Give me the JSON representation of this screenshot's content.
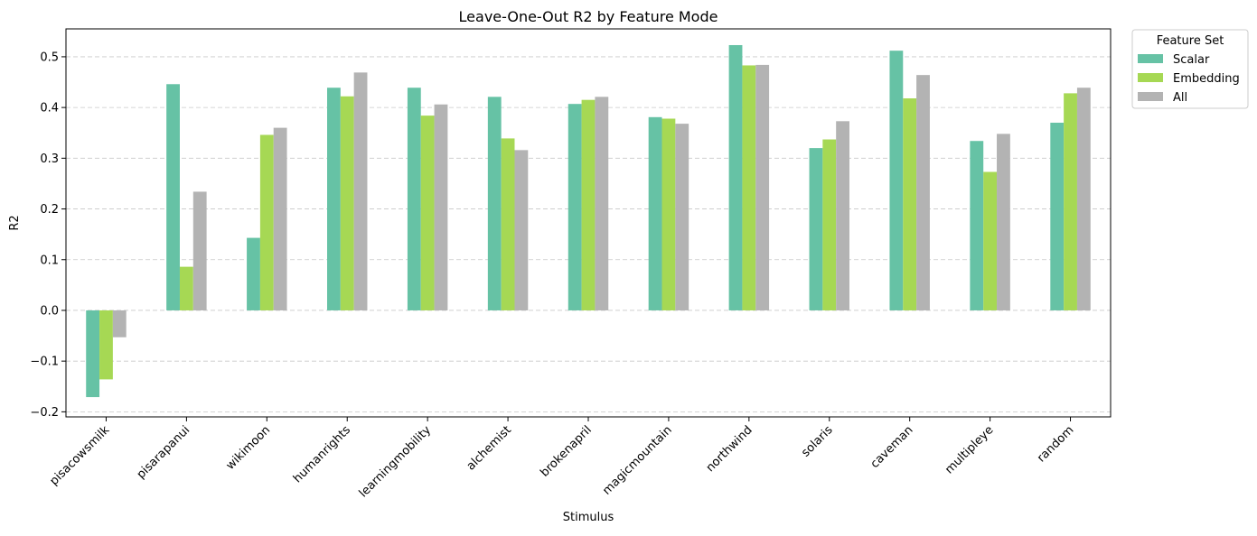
{
  "chart_data": {
    "type": "bar",
    "title": "Leave-One-Out R2 by Feature Mode",
    "xlabel": "Stimulus",
    "ylabel": "R2",
    "ylim": [
      -0.21,
      0.555
    ],
    "yticks": [
      -0.2,
      -0.1,
      0.0,
      0.1,
      0.2,
      0.3,
      0.4,
      0.5
    ],
    "ytick_labels": [
      "−0.2",
      "−0.1",
      "0.0",
      "0.1",
      "0.2",
      "0.3",
      "0.4",
      "0.5"
    ],
    "grid": "y, dashed",
    "legend": {
      "title": "Feature Set",
      "placement": "outside top-right"
    },
    "categories": [
      "pisacowsmilk",
      "pisarapanui",
      "wikimoon",
      "humanrights",
      "learningmobility",
      "alchemist",
      "brokenapril",
      "magicmountain",
      "northwind",
      "solaris",
      "caveman",
      "multipleye",
      "random"
    ],
    "series": [
      {
        "name": "Scalar",
        "color": "#66c2a5",
        "values": [
          -0.171,
          0.446,
          0.143,
          0.439,
          0.439,
          0.421,
          0.407,
          0.381,
          0.523,
          0.32,
          0.512,
          0.334,
          0.37
        ]
      },
      {
        "name": "Embedding",
        "color": "#a6d854",
        "values": [
          -0.136,
          0.086,
          0.346,
          0.422,
          0.384,
          0.339,
          0.415,
          0.378,
          0.483,
          0.337,
          0.418,
          0.273,
          0.428
        ]
      },
      {
        "name": "All",
        "color": "#b3b3b3",
        "values": [
          -0.053,
          0.234,
          0.36,
          0.469,
          0.406,
          0.316,
          0.421,
          0.368,
          0.484,
          0.373,
          0.464,
          0.348,
          0.439
        ]
      }
    ]
  }
}
